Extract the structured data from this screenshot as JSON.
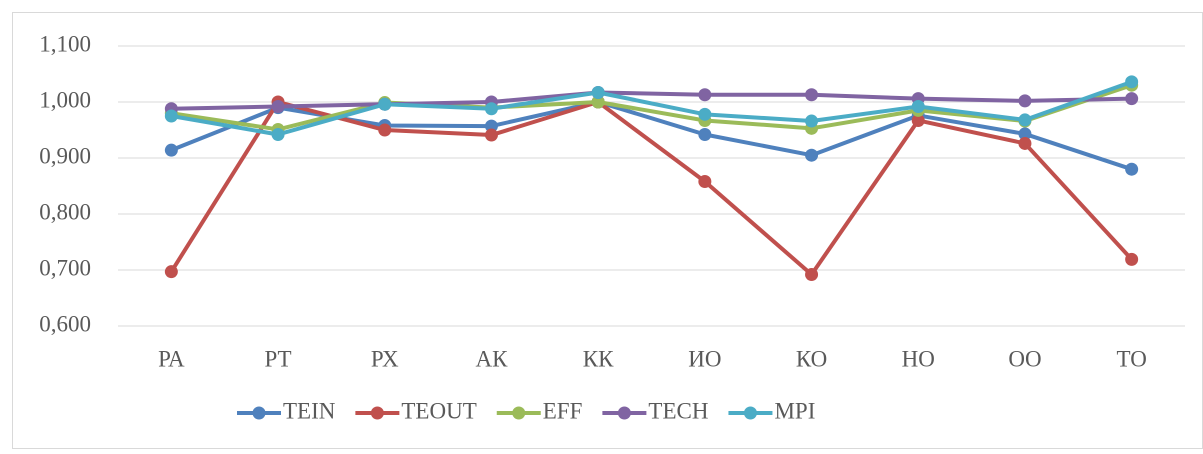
{
  "chart_data": {
    "type": "line",
    "categories": [
      "РА",
      "РТ",
      "РХ",
      "АК",
      "КК",
      "ИО",
      "КО",
      "НО",
      "ОО",
      "ТО"
    ],
    "series": [
      {
        "name": "TEIN",
        "color": "#4f81bd",
        "values": [
          0.914,
          0.99,
          0.958,
          0.957,
          1.0,
          0.942,
          0.905,
          0.976,
          0.943,
          0.88
        ]
      },
      {
        "name": "TEOUT",
        "color": "#c0504d",
        "values": [
          0.697,
          1.0,
          0.95,
          0.941,
          1.0,
          0.858,
          0.692,
          0.967,
          0.926,
          0.719
        ]
      },
      {
        "name": "EFF",
        "color": "#9bbb59",
        "values": [
          0.98,
          0.951,
          0.999,
          0.99,
          1.0,
          0.967,
          0.953,
          0.985,
          0.966,
          1.03
        ]
      },
      {
        "name": "TECH",
        "color": "#8064a2",
        "values": [
          0.988,
          0.992,
          0.996,
          1.0,
          1.017,
          1.013,
          1.013,
          1.006,
          1.002,
          1.006
        ]
      },
      {
        "name": "MPI",
        "color": "#4bacc6",
        "values": [
          0.975,
          0.942,
          0.996,
          0.988,
          1.017,
          0.978,
          0.966,
          0.992,
          0.968,
          1.036
        ]
      }
    ],
    "ylim": [
      0.6,
      1.1
    ],
    "yticks": [
      {
        "value": 0.6,
        "label": "0,600"
      },
      {
        "value": 0.7,
        "label": "0,700"
      },
      {
        "value": 0.8,
        "label": "0,800"
      },
      {
        "value": 0.9,
        "label": "0,900"
      },
      {
        "value": 1.0,
        "label": "1,000"
      },
      {
        "value": 1.1,
        "label": "1,100"
      }
    ],
    "grid": true,
    "legend": "bottom"
  }
}
